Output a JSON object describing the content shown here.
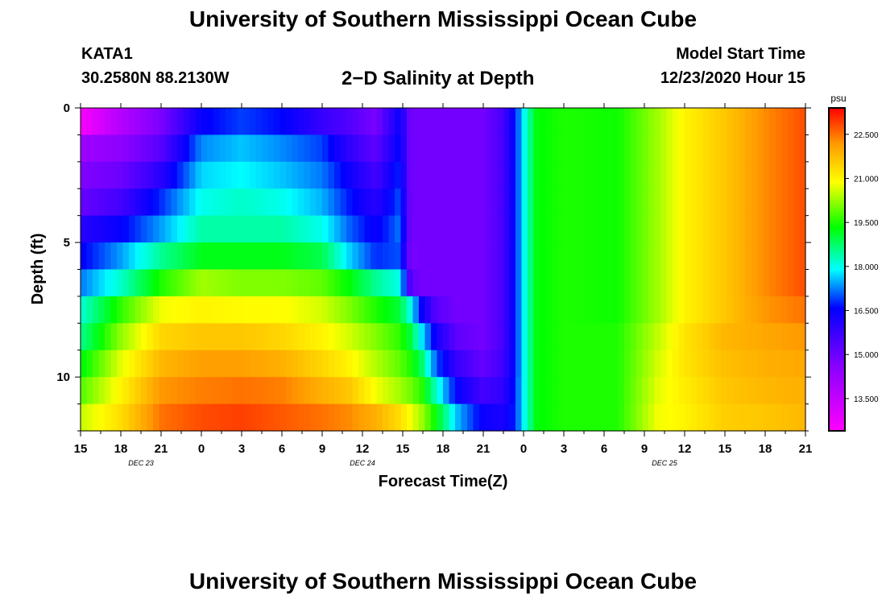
{
  "header": {
    "title": "University of Southern Mississippi Ocean Cube",
    "station_id": "KATA1",
    "coordinates": "30.2580N 88.2130W",
    "chart_title": "2−D Salinity at Depth",
    "model_start_label": "Model Start Time",
    "model_start_value": "12/23/2020 Hour 15"
  },
  "footer": {
    "title": "University of Southern Mississippi Ocean Cube"
  },
  "chart_data": {
    "type": "heatmap",
    "title": "2−D Salinity at Depth",
    "xlabel": "Forecast Time(Z)",
    "ylabel": "Depth (ft)",
    "x_tick_labels": [
      "15",
      "18",
      "21",
      "0",
      "3",
      "6",
      "9",
      "12",
      "15",
      "18",
      "21",
      "0",
      "3",
      "6",
      "9",
      "12",
      "15",
      "18",
      "21"
    ],
    "x_hours": [
      0,
      3,
      6,
      9,
      12,
      15,
      18,
      21,
      24,
      27,
      30,
      33,
      36,
      39,
      42,
      45,
      48,
      51,
      54
    ],
    "date_labels": [
      {
        "label": "DEC  23",
        "hour": 4.5
      },
      {
        "label": "DEC  24",
        "hour": 21
      },
      {
        "label": "DEC  25",
        "hour": 43.5
      }
    ],
    "y_ticks": [
      0,
      5,
      10
    ],
    "ylim": [
      0,
      12
    ],
    "y_reversed": true,
    "colorbar": {
      "unit": "psu",
      "labels": [
        "22.500",
        "21.000",
        "19.500",
        "18.000",
        "16.500",
        "15.000",
        "13.500"
      ],
      "label_values": [
        22.5,
        21.0,
        19.5,
        18.0,
        16.5,
        15.0,
        13.5
      ],
      "range": [
        12.4,
        23.4
      ]
    },
    "depth_levels": [
      0.5,
      1.5,
      2.5,
      3.5,
      4.5,
      5.5,
      6.5,
      7.5,
      8.5,
      9.5,
      10.5,
      11.5
    ],
    "value_profiles": [
      {
        "hour": 0,
        "values": [
          12.5,
          14.2,
          14.7,
          15.1,
          16.0,
          16.5,
          17.2,
          18.1,
          18.5,
          19.2,
          19.8,
          20.5
        ]
      },
      {
        "hour": 3,
        "values": [
          13.8,
          14.5,
          15.0,
          15.6,
          16.5,
          17.4,
          18.2,
          19.6,
          20.2,
          20.7,
          21.0,
          21.3
        ]
      },
      {
        "hour": 6,
        "values": [
          14.8,
          15.3,
          16.0,
          16.8,
          17.4,
          18.5,
          19.5,
          20.8,
          21.4,
          21.8,
          22.2,
          22.5
        ]
      },
      {
        "hour": 9,
        "values": [
          16.5,
          17.3,
          17.7,
          18.0,
          18.4,
          19.2,
          20.3,
          21.0,
          21.6,
          22.1,
          22.4,
          22.8
        ]
      },
      {
        "hour": 12,
        "values": [
          16.9,
          17.6,
          17.9,
          18.2,
          18.4,
          19.2,
          20.1,
          20.9,
          21.6,
          22.1,
          22.5,
          22.9
        ]
      },
      {
        "hour": 15,
        "values": [
          16.6,
          17.3,
          17.6,
          18.0,
          18.4,
          19.2,
          20.1,
          20.9,
          21.4,
          21.9,
          22.4,
          22.7
        ]
      },
      {
        "hour": 18,
        "values": [
          15.8,
          16.9,
          17.2,
          17.5,
          18.0,
          18.9,
          19.9,
          20.6,
          21.0,
          21.4,
          21.9,
          22.5
        ]
      },
      {
        "hour": 20,
        "values": [
          15.4,
          15.9,
          16.4,
          16.7,
          17.1,
          17.7,
          19.3,
          20.1,
          20.6,
          21.0,
          21.6,
          22.3
        ]
      },
      {
        "hour": 22,
        "values": [
          14.8,
          15.2,
          15.6,
          16.0,
          16.4,
          16.8,
          18.5,
          19.5,
          20.1,
          20.4,
          20.8,
          21.9
        ]
      },
      {
        "hour": 23.8,
        "values": [
          16.5,
          16.6,
          16.8,
          17.0,
          17.2,
          17.0,
          18.0,
          19.0,
          19.6,
          19.9,
          20.3,
          21.3
        ]
      },
      {
        "hour": 24.6,
        "values": [
          14.9,
          14.9,
          14.9,
          14.9,
          14.9,
          14.8,
          15.2,
          18.0,
          19.0,
          19.5,
          20.0,
          20.8
        ]
      },
      {
        "hour": 25.4,
        "values": [
          14.9,
          14.9,
          14.9,
          14.9,
          14.9,
          14.9,
          14.9,
          16.5,
          17.8,
          18.8,
          19.6,
          20.3
        ]
      },
      {
        "hour": 26.5,
        "values": [
          14.9,
          14.9,
          14.9,
          14.9,
          14.9,
          14.9,
          14.9,
          15.3,
          16.3,
          17.0,
          18.2,
          19.3
        ]
      },
      {
        "hour": 28,
        "values": [
          14.9,
          14.9,
          14.9,
          14.9,
          14.9,
          14.9,
          14.9,
          14.9,
          15.2,
          15.8,
          16.5,
          17.6
        ]
      },
      {
        "hour": 30,
        "values": [
          14.9,
          14.9,
          14.9,
          14.9,
          14.9,
          14.9,
          14.9,
          14.9,
          14.9,
          15.1,
          15.6,
          16.4
        ]
      },
      {
        "hour": 31.5,
        "values": [
          15.6,
          15.6,
          15.6,
          15.6,
          15.6,
          15.6,
          15.6,
          15.6,
          15.6,
          15.7,
          15.9,
          16.2
        ]
      },
      {
        "hour": 32.4,
        "values": [
          16.7,
          16.7,
          16.7,
          16.7,
          16.7,
          16.7,
          16.7,
          16.7,
          16.7,
          16.7,
          16.8,
          16.8
        ]
      },
      {
        "hour": 33,
        "values": [
          17.9,
          17.9,
          17.9,
          17.9,
          17.9,
          17.9,
          17.9,
          17.9,
          17.9,
          17.9,
          17.9,
          17.9
        ]
      },
      {
        "hour": 34,
        "values": [
          19.3,
          19.3,
          19.3,
          19.3,
          19.3,
          19.3,
          19.3,
          19.3,
          19.3,
          19.3,
          19.3,
          19.3
        ]
      },
      {
        "hour": 36,
        "values": [
          19.5,
          19.5,
          19.5,
          19.5,
          19.5,
          19.5,
          19.5,
          19.5,
          19.5,
          19.5,
          19.5,
          19.5
        ]
      },
      {
        "hour": 40,
        "values": [
          19.4,
          19.4,
          19.4,
          19.4,
          19.4,
          19.4,
          19.4,
          19.4,
          19.5,
          19.5,
          19.5,
          19.5
        ]
      },
      {
        "hour": 43,
        "values": [
          20.3,
          20.3,
          20.3,
          20.3,
          20.3,
          20.3,
          20.3,
          20.3,
          20.5,
          20.6,
          20.7,
          20.8
        ]
      },
      {
        "hour": 45,
        "values": [
          21.0,
          21.0,
          21.0,
          21.0,
          21.0,
          21.0,
          21.0,
          21.0,
          21.2,
          21.2,
          21.1,
          21.0
        ]
      },
      {
        "hour": 48,
        "values": [
          21.6,
          21.6,
          21.6,
          21.6,
          21.6,
          21.6,
          21.6,
          21.6,
          21.8,
          21.7,
          21.6,
          21.5
        ]
      },
      {
        "hour": 51,
        "values": [
          22.3,
          22.3,
          22.3,
          22.3,
          22.3,
          22.3,
          22.3,
          22.2,
          22.0,
          21.9,
          21.8,
          21.6
        ]
      },
      {
        "hour": 54,
        "values": [
          22.8,
          22.8,
          22.8,
          22.8,
          22.8,
          22.8,
          22.8,
          22.5,
          22.2,
          22.0,
          21.9,
          21.8
        ]
      }
    ]
  }
}
